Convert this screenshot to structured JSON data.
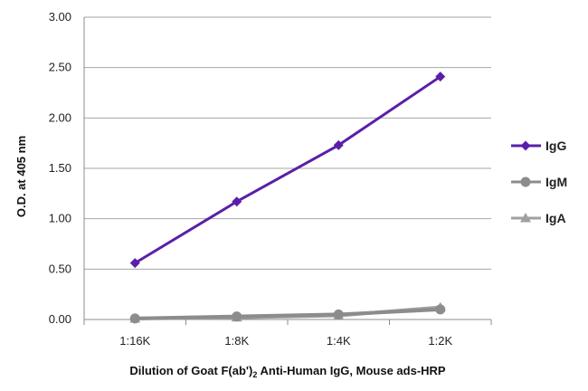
{
  "chart_data": {
    "type": "line",
    "title": "",
    "xlabel": {
      "pre": "Dilution of Goat F(ab')",
      "sub": "2",
      "post": " Anti-Human IgG, Mouse ads-HRP"
    },
    "ylabel": "O.D. at 405 nm",
    "categories": [
      "1:16K",
      "1:8K",
      "1:4K",
      "1:2K"
    ],
    "ylim": [
      0,
      3
    ],
    "yticks": [
      "0.00",
      "0.50",
      "1.00",
      "1.50",
      "2.00",
      "2.50",
      "3.00"
    ],
    "grid": "horizontal",
    "legend_position": "right",
    "series": [
      {
        "name": "IgG",
        "values": [
          0.56,
          1.17,
          1.73,
          2.41
        ],
        "color": "#5a1fa8",
        "marker": "diamond"
      },
      {
        "name": "IgM",
        "values": [
          0.01,
          0.03,
          0.05,
          0.1
        ],
        "color": "#8c8c8c",
        "marker": "circle"
      },
      {
        "name": "IgA",
        "values": [
          0.01,
          0.02,
          0.04,
          0.12
        ],
        "color": "#a0a0a0",
        "marker": "triangle"
      }
    ]
  }
}
